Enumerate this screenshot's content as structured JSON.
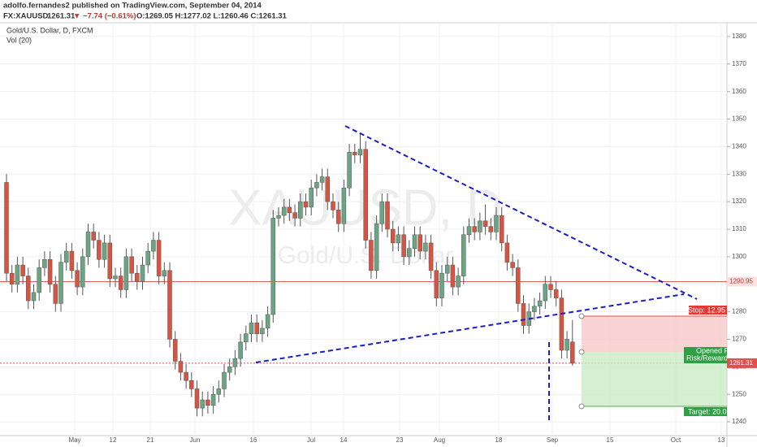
{
  "header": {
    "author_line": "adolfo.fernandes2 published on TradingView.com, September 04, 2014",
    "symbol": "FX:XAUUSD",
    "last": "1261.31",
    "change": "▼ −7.74 (−0.61%)",
    "ohlc": "O:1269.05 H:1277.02 L:1260.46 C:1261.31"
  },
  "legend": {
    "instrument": "Gold/U.S. Dollar, D, FXCM",
    "indicator": "Vol (20)"
  },
  "watermark": {
    "symbol": "XAUUSD, D",
    "name": "Gold/U.S. Dollar"
  },
  "position_tool": {
    "stop": "Stop: 12.95",
    "opened": "Opened P&",
    "risk_reward": "Risk/Reward R",
    "target": "Target: 20.0"
  },
  "chart_data": {
    "type": "candlestick",
    "up_color": "#6ba583",
    "down_color": "#d75442",
    "grid": true,
    "xtick_labels": [
      "May",
      "12",
      "21",
      "Jun",
      "16",
      "Jul",
      "14",
      "23",
      "Aug",
      "18",
      "Sep",
      "15",
      "Oct",
      "13"
    ],
    "ylim": [
      1235,
      1385
    ],
    "yticks": [
      1240,
      1250,
      1260,
      1270,
      1280,
      1290,
      1300,
      1310,
      1320,
      1330,
      1340,
      1350,
      1360,
      1370,
      1380
    ],
    "price_lines": [
      {
        "value": 1290.95,
        "color": "#e06060"
      },
      {
        "value": 1261.31,
        "color": "#e05050"
      }
    ],
    "open": [
      1327,
      1294,
      1290,
      1297,
      1293,
      1284,
      1287,
      1296,
      1299,
      1290,
      1283,
      1298,
      1302,
      1295,
      1289,
      1300,
      1309,
      1306,
      1299,
      1305,
      1292,
      1293,
      1288,
      1300,
      1294,
      1291,
      1297,
      1302,
      1306,
      1293,
      1295,
      1270,
      1262,
      1258,
      1255,
      1252,
      1245,
      1248,
      1246,
      1250,
      1252,
      1258,
      1260,
      1263,
      1269,
      1272,
      1276,
      1272,
      1274,
      1279,
      1314,
      1315,
      1318,
      1316,
      1314,
      1320,
      1318,
      1325,
      1327,
      1329,
      1320,
      1317,
      1312,
      1325,
      1338,
      1337,
      1339,
      1306,
      1295,
      1312,
      1320,
      1310,
      1305,
      1308,
      1300,
      1303,
      1308,
      1302,
      1305,
      1295,
      1285,
      1294,
      1297,
      1289,
      1293,
      1308,
      1311,
      1309,
      1313,
      1311,
      1309,
      1315,
      1305,
      1298,
      1296,
      1283,
      1275,
      1280,
      1282,
      1284,
      1290,
      1288,
      1285,
      1266,
      1269.05
    ],
    "high": [
      1330,
      1297,
      1300,
      1300,
      1296,
      1290,
      1299,
      1302,
      1302,
      1293,
      1301,
      1305,
      1305,
      1298,
      1303,
      1312,
      1312,
      1309,
      1308,
      1308,
      1296,
      1296,
      1303,
      1303,
      1297,
      1300,
      1305,
      1309,
      1309,
      1298,
      1298,
      1273,
      1265,
      1261,
      1258,
      1255,
      1251,
      1251,
      1253,
      1255,
      1261,
      1263,
      1266,
      1272,
      1275,
      1279,
      1279,
      1277,
      1282,
      1317,
      1318,
      1321,
      1321,
      1319,
      1323,
      1323,
      1328,
      1330,
      1332,
      1332,
      1323,
      1320,
      1328,
      1341,
      1341,
      1345,
      1342,
      1309,
      1315,
      1323,
      1323,
      1313,
      1311,
      1311,
      1306,
      1311,
      1311,
      1308,
      1308,
      1298,
      1297,
      1300,
      1300,
      1296,
      1311,
      1314,
      1314,
      1316,
      1319,
      1314,
      1318,
      1318,
      1308,
      1301,
      1299,
      1286,
      1283,
      1285,
      1287,
      1293,
      1293,
      1291,
      1288,
      1273,
      1277.02
    ],
    "low": [
      1291,
      1287,
      1287,
      1290,
      1281,
      1281,
      1284,
      1293,
      1287,
      1280,
      1280,
      1295,
      1292,
      1286,
      1286,
      1297,
      1303,
      1296,
      1296,
      1289,
      1289,
      1285,
      1285,
      1291,
      1288,
      1288,
      1294,
      1299,
      1290,
      1290,
      1267,
      1259,
      1255,
      1252,
      1249,
      1242,
      1242,
      1243,
      1243,
      1247,
      1249,
      1255,
      1257,
      1260,
      1266,
      1269,
      1269,
      1269,
      1271,
      1276,
      1311,
      1312,
      1313,
      1311,
      1311,
      1315,
      1315,
      1322,
      1324,
      1317,
      1314,
      1309,
      1309,
      1322,
      1334,
      1334,
      1303,
      1292,
      1292,
      1309,
      1307,
      1302,
      1302,
      1297,
      1297,
      1300,
      1299,
      1299,
      1292,
      1282,
      1282,
      1291,
      1286,
      1286,
      1290,
      1305,
      1306,
      1306,
      1308,
      1306,
      1306,
      1302,
      1295,
      1293,
      1280,
      1272,
      1272,
      1277,
      1279,
      1281,
      1285,
      1282,
      1263,
      1263,
      1260.46
    ],
    "close": [
      1294,
      1290,
      1297,
      1293,
      1284,
      1287,
      1296,
      1299,
      1290,
      1283,
      1298,
      1302,
      1295,
      1289,
      1300,
      1309,
      1306,
      1299,
      1305,
      1292,
      1293,
      1288,
      1300,
      1294,
      1291,
      1297,
      1302,
      1306,
      1293,
      1295,
      1270,
      1262,
      1258,
      1255,
      1252,
      1245,
      1248,
      1246,
      1250,
      1252,
      1258,
      1260,
      1263,
      1269,
      1272,
      1276,
      1272,
      1274,
      1279,
      1314,
      1315,
      1318,
      1316,
      1314,
      1320,
      1318,
      1325,
      1327,
      1329,
      1320,
      1317,
      1312,
      1325,
      1338,
      1337,
      1339,
      1306,
      1295,
      1312,
      1320,
      1310,
      1305,
      1308,
      1300,
      1303,
      1308,
      1302,
      1305,
      1295,
      1285,
      1294,
      1297,
      1289,
      1293,
      1308,
      1311,
      1309,
      1313,
      1311,
      1309,
      1315,
      1305,
      1298,
      1296,
      1283,
      1275,
      1280,
      1282,
      1284,
      1290,
      1288,
      1285,
      1266,
      1270,
      1261.31
    ]
  }
}
